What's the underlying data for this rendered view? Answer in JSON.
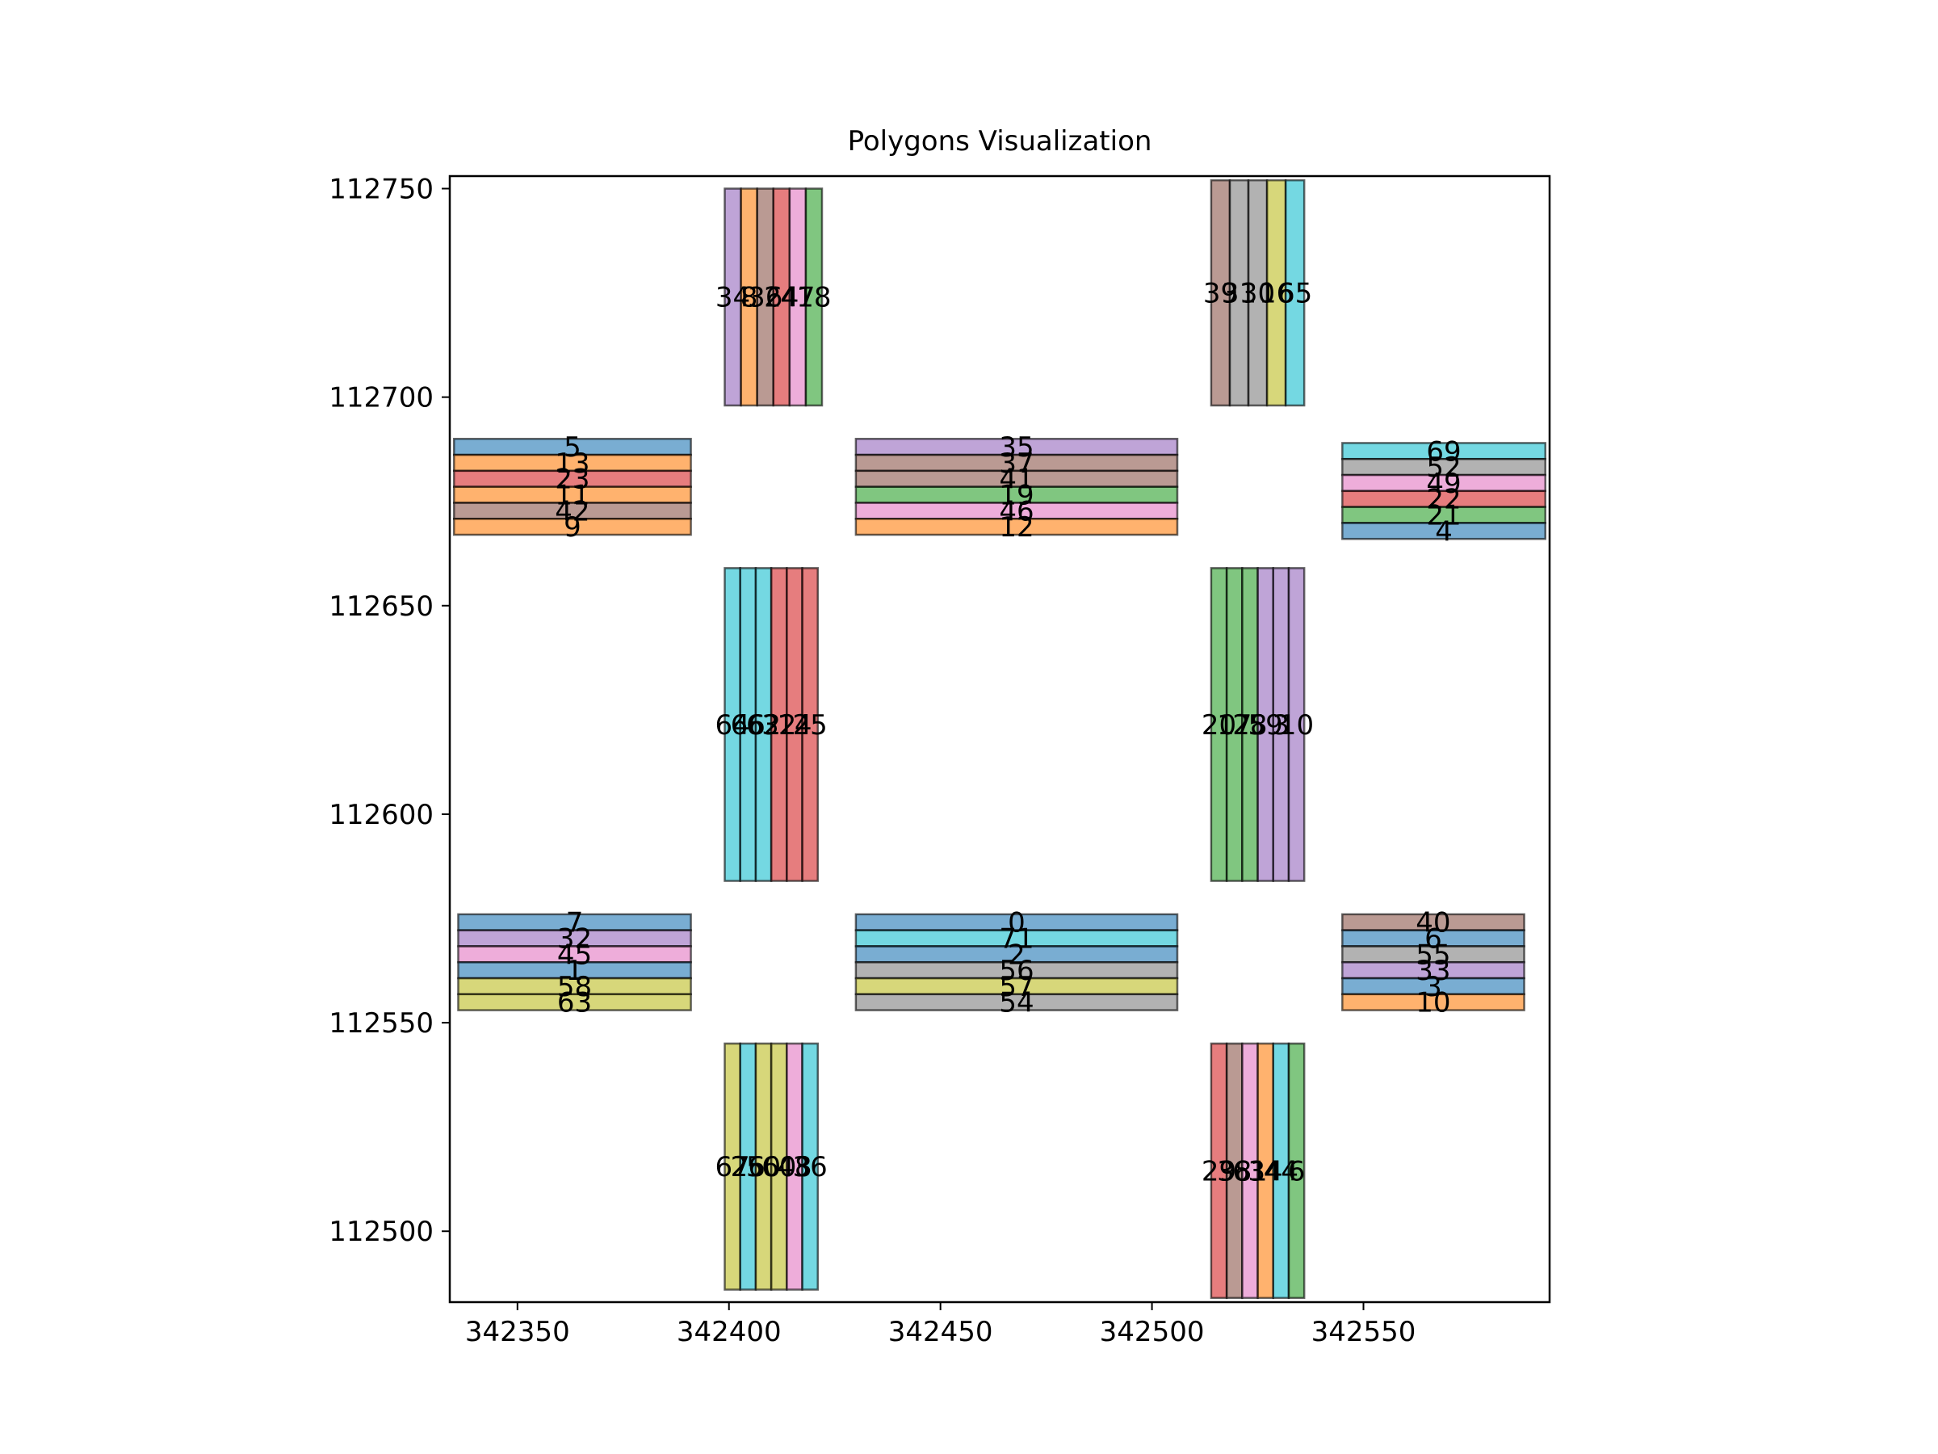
{
  "chart_data": {
    "type": "polygon",
    "title": "Polygons Visualization",
    "xlabel": "",
    "ylabel": "",
    "xlim": [
      342334,
      342594
    ],
    "ylim": [
      112483,
      112753
    ],
    "x_ticks": [
      342350,
      342400,
      342450,
      342500,
      342550
    ],
    "y_ticks": [
      112500,
      112550,
      112600,
      112650,
      112700,
      112750
    ],
    "x_tick_labels": [
      "342350",
      "342400",
      "342450",
      "342500",
      "342550"
    ],
    "y_tick_labels": [
      "112500",
      "112550",
      "112600",
      "112650",
      "112700",
      "112750"
    ],
    "palette": {
      "blue": "#1f77b4",
      "orange": "#ff7f0e",
      "green": "#2ca02c",
      "red": "#d62728",
      "purple": "#9467bd",
      "brown": "#8c564b",
      "pink": "#e377c2",
      "gray": "#7f7f7f",
      "olive": "#bcbd22",
      "cyan": "#17becf"
    },
    "groups": [
      {
        "orient": "v",
        "x0": 342399,
        "x1": 342422,
        "y0": 112698,
        "y1": 112750,
        "polygons": [
          {
            "id": "34",
            "color": "purple"
          },
          {
            "id": "8",
            "color": "orange"
          },
          {
            "id": "36",
            "color": "brown"
          },
          {
            "id": "24",
            "color": "red"
          },
          {
            "id": "47",
            "color": "pink"
          },
          {
            "id": "18",
            "color": "green"
          }
        ]
      },
      {
        "orient": "v",
        "x0": 342514,
        "x1": 342536,
        "y0": 112698,
        "y1": 112752,
        "polygons": [
          {
            "id": "39",
            "color": "brown"
          },
          {
            "id": "31",
            "color": "gray"
          },
          {
            "id": "30",
            "color": "gray"
          },
          {
            "id": "16",
            "color": "olive"
          },
          {
            "id": "65",
            "color": "cyan"
          }
        ]
      },
      {
        "orient": "h",
        "x0": 342335,
        "x1": 342391,
        "y0": 112667,
        "y1": 112690,
        "polygons": [
          {
            "id": "5",
            "color": "blue"
          },
          {
            "id": "13",
            "color": "orange"
          },
          {
            "id": "23",
            "color": "red"
          },
          {
            "id": "11",
            "color": "orange"
          },
          {
            "id": "42",
            "color": "brown"
          },
          {
            "id": "9",
            "color": "orange"
          }
        ]
      },
      {
        "orient": "h",
        "x0": 342430,
        "x1": 342506,
        "y0": 112667,
        "y1": 112690,
        "polygons": [
          {
            "id": "35",
            "color": "purple"
          },
          {
            "id": "37",
            "color": "brown"
          },
          {
            "id": "41",
            "color": "brown"
          },
          {
            "id": "19",
            "color": "green"
          },
          {
            "id": "46",
            "color": "pink"
          },
          {
            "id": "12",
            "color": "orange"
          }
        ]
      },
      {
        "orient": "h",
        "x0": 342545,
        "x1": 342593,
        "y0": 112666,
        "y1": 112689,
        "polygons": [
          {
            "id": "69",
            "color": "cyan"
          },
          {
            "id": "52",
            "color": "gray"
          },
          {
            "id": "49",
            "color": "pink"
          },
          {
            "id": "22",
            "color": "red"
          },
          {
            "id": "21",
            "color": "green"
          },
          {
            "id": "4",
            "color": "blue"
          }
        ]
      },
      {
        "orient": "v",
        "x0": 342399,
        "x1": 342421,
        "y0": 112584,
        "y1": 112659,
        "polygons": [
          {
            "id": "64",
            "color": "cyan"
          },
          {
            "id": "66",
            "color": "cyan"
          },
          {
            "id": "62",
            "color": "cyan"
          },
          {
            "id": "32",
            "color": "red"
          },
          {
            "id": "14",
            "color": "red"
          },
          {
            "id": "25",
            "color": "red"
          }
        ]
      },
      {
        "orient": "v",
        "x0": 342514,
        "x1": 342536,
        "y0": 112584,
        "y1": 112659,
        "polygons": [
          {
            "id": "20",
            "color": "green"
          },
          {
            "id": "17",
            "color": "green"
          },
          {
            "id": "28",
            "color": "green"
          },
          {
            "id": "59",
            "color": "purple"
          },
          {
            "id": "3",
            "color": "purple"
          },
          {
            "id": "10",
            "color": "purple"
          }
        ]
      },
      {
        "orient": "h",
        "x0": 342336,
        "x1": 342391,
        "y0": 112553,
        "y1": 112576,
        "polygons": [
          {
            "id": "7",
            "color": "blue"
          },
          {
            "id": "32",
            "color": "purple"
          },
          {
            "id": "45",
            "color": "pink"
          },
          {
            "id": "1",
            "color": "blue"
          },
          {
            "id": "58",
            "color": "olive"
          },
          {
            "id": "63",
            "color": "olive"
          }
        ]
      },
      {
        "orient": "h",
        "x0": 342430,
        "x1": 342506,
        "y0": 112553,
        "y1": 112576,
        "polygons": [
          {
            "id": "0",
            "color": "blue"
          },
          {
            "id": "71",
            "color": "cyan"
          },
          {
            "id": "2",
            "color": "blue"
          },
          {
            "id": "56",
            "color": "gray"
          },
          {
            "id": "57",
            "color": "olive"
          },
          {
            "id": "54",
            "color": "gray"
          }
        ]
      },
      {
        "orient": "h",
        "x0": 342545,
        "x1": 342588,
        "y0": 112553,
        "y1": 112576,
        "polygons": [
          {
            "id": "40",
            "color": "brown"
          },
          {
            "id": "6",
            "color": "blue"
          },
          {
            "id": "55",
            "color": "gray"
          },
          {
            "id": "33",
            "color": "purple"
          },
          {
            "id": "3",
            "color": "blue"
          },
          {
            "id": "10",
            "color": "orange"
          }
        ]
      },
      {
        "orient": "v",
        "x0": 342399,
        "x1": 342421,
        "y0": 112486,
        "y1": 112545,
        "polygons": [
          {
            "id": "67",
            "color": "olive"
          },
          {
            "id": "26",
            "color": "cyan"
          },
          {
            "id": "50",
            "color": "olive"
          },
          {
            "id": "60",
            "color": "olive"
          },
          {
            "id": "48",
            "color": "pink"
          },
          {
            "id": "36",
            "color": "cyan"
          }
        ]
      },
      {
        "orient": "v",
        "x0": 342514,
        "x1": 342536,
        "y0": 112484,
        "y1": 112545,
        "polygons": [
          {
            "id": "29",
            "color": "red"
          },
          {
            "id": "38",
            "color": "brown"
          },
          {
            "id": "61",
            "color": "pink"
          },
          {
            "id": "34",
            "color": "orange"
          },
          {
            "id": "44",
            "color": "cyan"
          },
          {
            "id": "6",
            "color": "green"
          }
        ]
      }
    ]
  }
}
